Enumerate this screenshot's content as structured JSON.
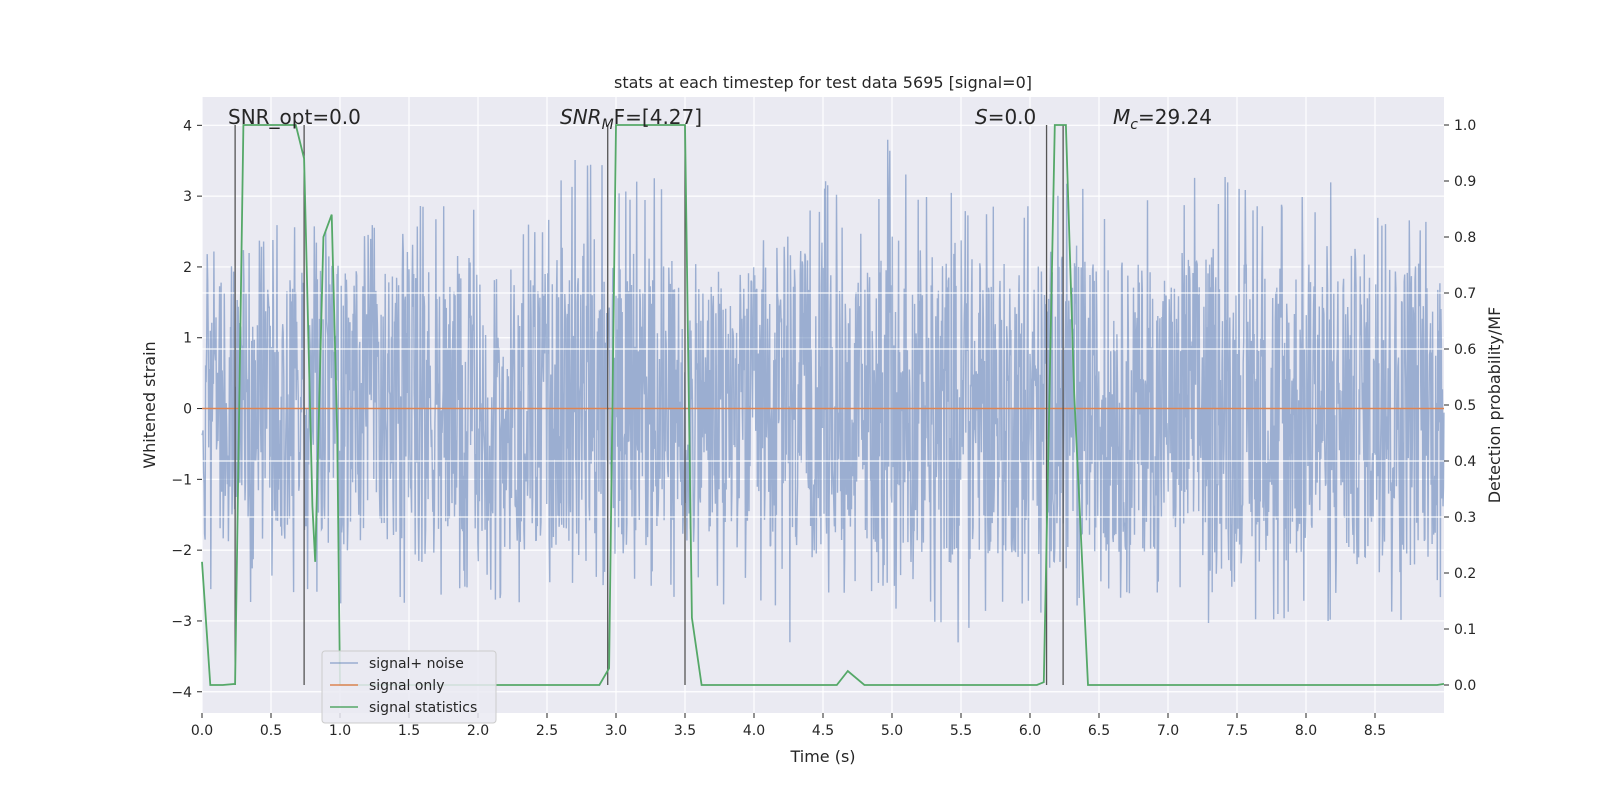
{
  "chart_data": {
    "type": "line",
    "title": "stats at each timestep for test data 5695 [signal=0]",
    "xlabel": "Time (s)",
    "ylabel": "Whitened strain",
    "ylabel_right": "Detection probability/MF",
    "xlim": [
      0.0,
      9.0
    ],
    "ylim": [
      -4.3,
      4.4
    ],
    "ylim_right": [
      -0.05,
      1.05
    ],
    "xticks": [
      0.0,
      0.5,
      1.0,
      1.5,
      2.0,
      2.5,
      3.0,
      3.5,
      4.0,
      4.5,
      5.0,
      5.5,
      6.0,
      6.5,
      7.0,
      7.5,
      8.0,
      8.5
    ],
    "xtick_labels": [
      "0.0",
      "0.5",
      "1.0",
      "1.5",
      "2.0",
      "2.5",
      "3.0",
      "3.5",
      "4.0",
      "4.5",
      "5.0",
      "5.5",
      "6.0",
      "6.5",
      "7.0",
      "7.5",
      "8.0",
      "8.5"
    ],
    "yticks": [
      -4,
      -3,
      -2,
      -1,
      0,
      1,
      2,
      3,
      4
    ],
    "ytick_labels": [
      "−4",
      "−3",
      "−2",
      "−1",
      "0",
      "1",
      "2",
      "3",
      "4"
    ],
    "yticks_right": [
      0.0,
      0.1,
      0.2,
      0.3,
      0.4,
      0.5,
      0.6,
      0.7,
      0.8,
      0.9,
      1.0
    ],
    "ytick_labels_right": [
      "0.0",
      "0.1",
      "0.2",
      "0.3",
      "0.4",
      "0.5",
      "0.6",
      "0.7",
      "0.8",
      "0.9",
      "1.0"
    ],
    "grid": true,
    "legend_position": "bottom-left",
    "series": [
      {
        "name": "signal+ noise",
        "axis": "left",
        "color": "#4c72b0",
        "envelope": {
          "t": [
            0.0,
            0.25,
            0.5,
            0.75,
            1.0,
            1.25,
            1.5,
            1.75,
            2.0,
            2.25,
            2.5,
            2.75,
            3.0,
            3.25,
            3.5,
            3.75,
            4.0,
            4.25,
            4.5,
            4.75,
            5.0,
            5.25,
            5.5,
            5.75,
            6.0,
            6.25,
            6.5,
            6.75,
            7.0,
            7.25,
            7.5,
            7.75,
            8.0,
            8.25,
            8.5,
            8.75,
            9.0
          ],
          "max": [
            2.6,
            2.3,
            2.6,
            2.7,
            2.8,
            2.6,
            2.9,
            3.0,
            3.0,
            2.7,
            2.9,
            3.8,
            3.4,
            3.3,
            2.9,
            2.7,
            2.8,
            2.7,
            3.3,
            2.6,
            4.0,
            3.0,
            3.1,
            2.9,
            2.9,
            3.4,
            2.9,
            3.0,
            3.0,
            3.5,
            3.2,
            2.8,
            3.2,
            3.4,
            3.0,
            3.0,
            2.7
          ],
          "min": [
            -2.5,
            -2.9,
            -3.5,
            -2.6,
            -3.2,
            -2.4,
            -3.3,
            -2.6,
            -2.7,
            -2.9,
            -2.7,
            -2.6,
            -2.5,
            -2.8,
            -2.7,
            -2.8,
            -2.6,
            -3.6,
            -2.8,
            -2.6,
            -2.9,
            -3.0,
            -3.6,
            -2.9,
            -3.1,
            -3.0,
            -2.8,
            -2.9,
            -2.7,
            -3.1,
            -2.8,
            -3.2,
            -3.1,
            -3.0,
            -3.2,
            -3.3,
            -2.6
          ]
        }
      },
      {
        "name": "signal only",
        "axis": "left",
        "color": "#dd8452",
        "points": [
          [
            0.0,
            0.0
          ],
          [
            9.0,
            0.0
          ]
        ]
      },
      {
        "name": "signal statistics",
        "axis": "right",
        "color": "#55a868",
        "points": [
          [
            0.0,
            0.22
          ],
          [
            0.06,
            0.0
          ],
          [
            0.15,
            0.0
          ],
          [
            0.24,
            0.002
          ],
          [
            0.3,
            1.0
          ],
          [
            0.52,
            1.0
          ],
          [
            0.68,
            1.0
          ],
          [
            0.74,
            0.94
          ],
          [
            0.8,
            0.32
          ],
          [
            0.82,
            0.22
          ],
          [
            0.88,
            0.8
          ],
          [
            0.94,
            0.84
          ],
          [
            0.98,
            0.45
          ],
          [
            1.0,
            0.0
          ],
          [
            1.2,
            0.0
          ],
          [
            2.0,
            0.0
          ],
          [
            2.88,
            0.0
          ],
          [
            2.95,
            0.03
          ],
          [
            3.0,
            1.0
          ],
          [
            3.3,
            1.0
          ],
          [
            3.5,
            1.0
          ],
          [
            3.55,
            0.12
          ],
          [
            3.62,
            0.0
          ],
          [
            4.0,
            0.0
          ],
          [
            4.6,
            0.0
          ],
          [
            4.68,
            0.025
          ],
          [
            4.8,
            0.0
          ],
          [
            5.5,
            0.0
          ],
          [
            6.05,
            0.0
          ],
          [
            6.1,
            0.005
          ],
          [
            6.18,
            1.0
          ],
          [
            6.26,
            1.0
          ],
          [
            6.32,
            0.52
          ],
          [
            6.42,
            0.0
          ],
          [
            7.0,
            0.0
          ],
          [
            8.0,
            0.0
          ],
          [
            8.95,
            0.0
          ],
          [
            9.0,
            0.002
          ]
        ]
      }
    ],
    "vlines": [
      0.24,
      0.74,
      2.94,
      3.5,
      6.12,
      6.24
    ],
    "hlines_right": [
      0.3,
      0.4,
      0.6,
      0.7
    ]
  },
  "annotations": {
    "snr_opt": "SNR_opt=0.0",
    "snr_mf_base": "SNR",
    "snr_mf_sub": "M",
    "snr_mf_rest": "F=[4.27]",
    "s_stat_sym": "S",
    "s_stat_rest": "=0.0",
    "mc_base": "M",
    "mc_sub": "c",
    "mc_rest": "=29.24"
  },
  "legend": {
    "items": [
      "signal+ noise",
      "signal only",
      "signal statistics"
    ]
  },
  "colors": {
    "axes_bg": "#eaeaf2",
    "grid": "#ffffff",
    "vline": "#555555",
    "text": "#262626"
  }
}
